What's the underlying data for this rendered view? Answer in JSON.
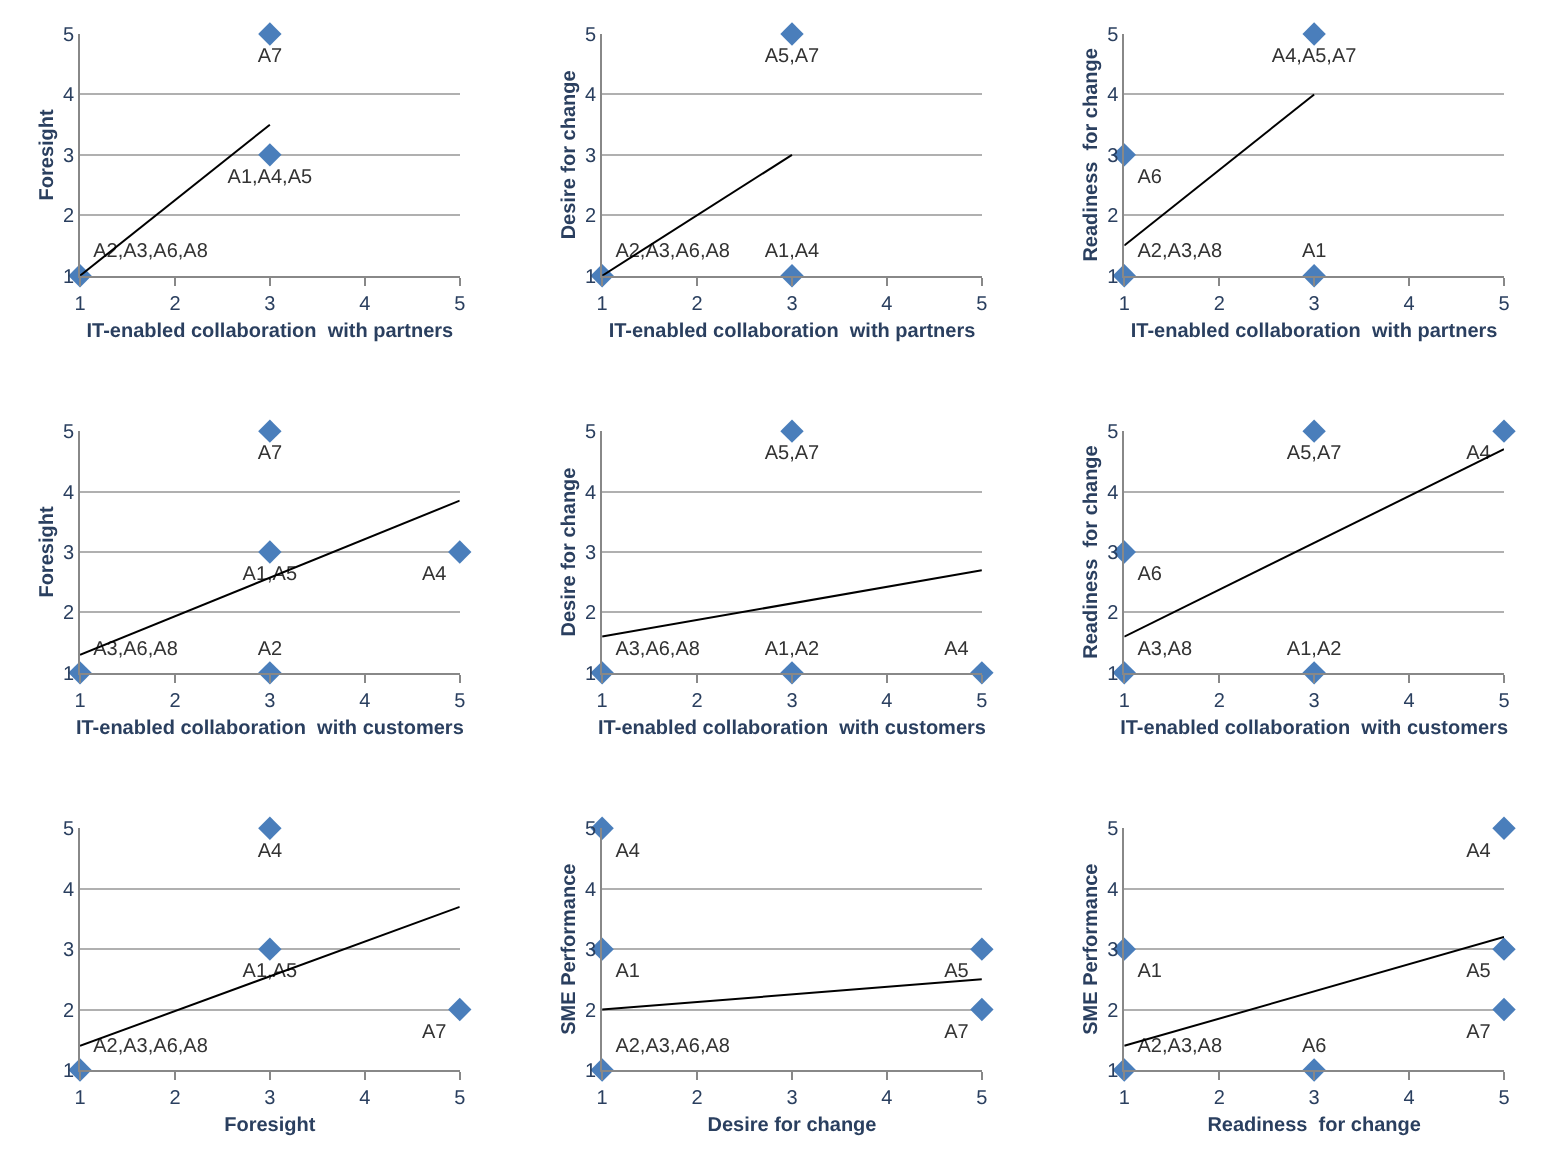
{
  "chart_data": [
    {
      "type": "scatter",
      "xlabel": "IT-enabled collaboration  with partners",
      "ylabel": "Foresight",
      "xlim": [
        1,
        5
      ],
      "ylim": [
        1,
        5
      ],
      "xticks": [
        1,
        2,
        3,
        4,
        5
      ],
      "yticks": [
        1,
        2,
        3,
        4,
        5
      ],
      "grid": "y",
      "marker": "diamond",
      "series": [
        {
          "type": "scatter",
          "color": "#4a7ebb",
          "x": [
            1,
            3,
            3
          ],
          "values": [
            1,
            3,
            5
          ],
          "value_labels": [
            "A2,A3,A6,A8",
            "A1,A4,A5",
            "A7"
          ]
        },
        {
          "type": "line",
          "marker": "none",
          "color": "#000000",
          "x": [
            1,
            3
          ],
          "values": [
            1,
            3.5
          ]
        }
      ]
    },
    {
      "type": "scatter",
      "xlabel": "IT-enabled collaboration  with partners",
      "ylabel": "Desire for change",
      "xlim": [
        1,
        5
      ],
      "ylim": [
        1,
        5
      ],
      "xticks": [
        1,
        2,
        3,
        4,
        5
      ],
      "yticks": [
        1,
        2,
        3,
        4,
        5
      ],
      "grid": "y",
      "marker": "diamond",
      "series": [
        {
          "type": "scatter",
          "color": "#4a7ebb",
          "x": [
            1,
            3,
            3
          ],
          "values": [
            1,
            1,
            5
          ],
          "value_labels": [
            "A2,A3,A6,A8",
            "A1,A4",
            "A5,A7"
          ]
        },
        {
          "type": "line",
          "marker": "none",
          "color": "#000000",
          "x": [
            1,
            3
          ],
          "values": [
            1,
            3
          ]
        }
      ]
    },
    {
      "type": "scatter",
      "xlabel": "IT-enabled collaboration  with partners",
      "ylabel": "Readiness  for change",
      "xlim": [
        1,
        5
      ],
      "ylim": [
        1,
        5
      ],
      "xticks": [
        1,
        2,
        3,
        4,
        5
      ],
      "yticks": [
        1,
        2,
        3,
        4,
        5
      ],
      "grid": "y",
      "marker": "diamond",
      "series": [
        {
          "type": "scatter",
          "color": "#4a7ebb",
          "x": [
            1,
            1,
            3,
            3
          ],
          "values": [
            1,
            3,
            1,
            5
          ],
          "value_labels": [
            "A2,A3,A8",
            "A6",
            "A1",
            "A4,A5,A7"
          ]
        },
        {
          "type": "line",
          "marker": "none",
          "color": "#000000",
          "x": [
            1,
            3
          ],
          "values": [
            1.5,
            4
          ]
        }
      ]
    },
    {
      "type": "scatter",
      "xlabel": "IT-enabled collaboration  with customers",
      "ylabel": "Foresight",
      "xlim": [
        1,
        5
      ],
      "ylim": [
        1,
        5
      ],
      "xticks": [
        1,
        2,
        3,
        4,
        5
      ],
      "yticks": [
        1,
        2,
        3,
        4,
        5
      ],
      "grid": "y",
      "marker": "diamond",
      "series": [
        {
          "type": "scatter",
          "color": "#4a7ebb",
          "x": [
            1,
            3,
            3,
            3,
            5
          ],
          "values": [
            1,
            1,
            3,
            5,
            3
          ],
          "value_labels": [
            "A3,A6,A8",
            "A2",
            "A1,A5",
            "A7",
            "A4"
          ]
        },
        {
          "type": "line",
          "marker": "none",
          "color": "#000000",
          "x": [
            1,
            5
          ],
          "values": [
            1.3,
            3.85
          ]
        }
      ]
    },
    {
      "type": "scatter",
      "xlabel": "IT-enabled collaboration  with customers",
      "ylabel": "Desire for change",
      "xlim": [
        1,
        5
      ],
      "ylim": [
        1,
        5
      ],
      "xticks": [
        1,
        2,
        3,
        4,
        5
      ],
      "yticks": [
        1,
        2,
        3,
        4,
        5
      ],
      "grid": "y",
      "marker": "diamond",
      "series": [
        {
          "type": "scatter",
          "color": "#4a7ebb",
          "x": [
            1,
            3,
            5,
            3
          ],
          "values": [
            1,
            1,
            1,
            5
          ],
          "value_labels": [
            "A3,A6,A8",
            "A1,A2",
            "A4",
            "A5,A7"
          ]
        },
        {
          "type": "line",
          "marker": "none",
          "color": "#000000",
          "x": [
            1,
            5
          ],
          "values": [
            1.6,
            2.7
          ]
        }
      ]
    },
    {
      "type": "scatter",
      "xlabel": "IT-enabled collaboration  with customers",
      "ylabel": "Readiness  for change",
      "xlim": [
        1,
        5
      ],
      "ylim": [
        1,
        5
      ],
      "xticks": [
        1,
        2,
        3,
        4,
        5
      ],
      "yticks": [
        1,
        2,
        3,
        4,
        5
      ],
      "grid": "y",
      "marker": "diamond",
      "series": [
        {
          "type": "scatter",
          "color": "#4a7ebb",
          "x": [
            1,
            1,
            3,
            3,
            5
          ],
          "values": [
            1,
            3,
            1,
            5,
            5
          ],
          "value_labels": [
            "A3,A8",
            "A6",
            "A1,A2",
            "A5,A7",
            "A4"
          ]
        },
        {
          "type": "line",
          "marker": "none",
          "color": "#000000",
          "x": [
            1,
            5
          ],
          "values": [
            1.6,
            4.7
          ]
        }
      ]
    },
    {
      "type": "scatter",
      "xlabel": "Foresight",
      "xlim": [
        1,
        5
      ],
      "ylim": [
        1,
        5
      ],
      "xticks": [
        1,
        2,
        3,
        4,
        5
      ],
      "yticks": [
        1,
        2,
        3,
        4,
        5
      ],
      "grid": "y",
      "marker": "diamond",
      "series": [
        {
          "type": "scatter",
          "color": "#4a7ebb",
          "x": [
            1,
            3,
            3,
            5
          ],
          "values": [
            1,
            3,
            5,
            2
          ],
          "value_labels": [
            "A2,A3,A6,A8",
            "A1,A5",
            "A4",
            "A7"
          ]
        },
        {
          "type": "line",
          "marker": "none",
          "color": "#000000",
          "x": [
            1,
            5
          ],
          "values": [
            1.4,
            3.7
          ]
        }
      ]
    },
    {
      "type": "scatter",
      "xlabel": "Desire for change",
      "ylabel": "SME Performance",
      "xlim": [
        1,
        5
      ],
      "ylim": [
        1,
        5
      ],
      "xticks": [
        1,
        2,
        3,
        4,
        5
      ],
      "yticks": [
        1,
        2,
        3,
        4,
        5
      ],
      "grid": "y",
      "marker": "diamond",
      "series": [
        {
          "type": "scatter",
          "color": "#4a7ebb",
          "x": [
            1,
            1,
            1,
            5,
            5
          ],
          "values": [
            1,
            3,
            5,
            3,
            2
          ],
          "value_labels": [
            "A2,A3,A6,A8",
            "A1",
            "A4",
            "A5",
            "A7"
          ]
        },
        {
          "type": "line",
          "marker": "none",
          "color": "#000000",
          "x": [
            1,
            5
          ],
          "values": [
            2,
            2.5
          ]
        }
      ]
    },
    {
      "type": "scatter",
      "xlabel": "Readiness  for change",
      "ylabel": "SME Performance",
      "xlim": [
        1,
        5
      ],
      "ylim": [
        1,
        5
      ],
      "xticks": [
        1,
        2,
        3,
        4,
        5
      ],
      "yticks": [
        1,
        2,
        3,
        4,
        5
      ],
      "grid": "y",
      "marker": "diamond",
      "series": [
        {
          "type": "scatter",
          "color": "#4a7ebb",
          "x": [
            1,
            1,
            3,
            5,
            5,
            5
          ],
          "values": [
            1,
            3,
            1,
            5,
            3,
            2
          ],
          "value_labels": [
            "A2,A3,A8",
            "A1",
            "A6",
            "A4",
            "A5",
            "A7"
          ]
        },
        {
          "type": "line",
          "marker": "none",
          "color": "#000000",
          "x": [
            1,
            5
          ],
          "values": [
            1.4,
            3.2
          ]
        }
      ]
    }
  ]
}
